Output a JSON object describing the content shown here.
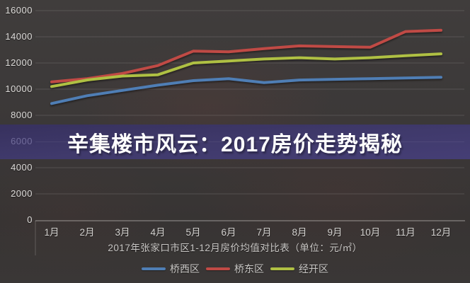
{
  "banner": {
    "title": "辛集楼市风云：2017房价走势揭秘",
    "faded_ylabel": "6000",
    "bg_color": "#3f3969",
    "text_color": "#ffffff"
  },
  "chart_data": {
    "type": "line",
    "title": "2017年张家口市区1-12月房价均值对比表（单位：元/㎡）",
    "categories": [
      "1月",
      "2月",
      "3月",
      "4月",
      "5月",
      "6月",
      "7月",
      "8月",
      "9月",
      "10月",
      "11月",
      "12月"
    ],
    "series": [
      {
        "name": "桥西区",
        "color": "#4f7eb5",
        "values": [
          8900,
          9500,
          9900,
          10300,
          10650,
          10800,
          10500,
          10700,
          10750,
          10800,
          10850,
          10900
        ]
      },
      {
        "name": "桥东区",
        "color": "#c04a45",
        "values": [
          10550,
          10800,
          11200,
          11800,
          12900,
          12850,
          13100,
          13300,
          13250,
          13200,
          14400,
          14500
        ]
      },
      {
        "name": "经开区",
        "color": "#afc043",
        "values": [
          10200,
          10700,
          11000,
          11100,
          12000,
          12150,
          12300,
          12400,
          12300,
          12400,
          12550,
          12700
        ]
      }
    ],
    "ylim": [
      0,
      16000
    ],
    "yticks": [
      0,
      2000,
      4000,
      6000,
      8000,
      10000,
      12000,
      14000,
      16000
    ],
    "grid": true,
    "legend_position": "bottom",
    "ylabel": "",
    "xlabel": ""
  }
}
